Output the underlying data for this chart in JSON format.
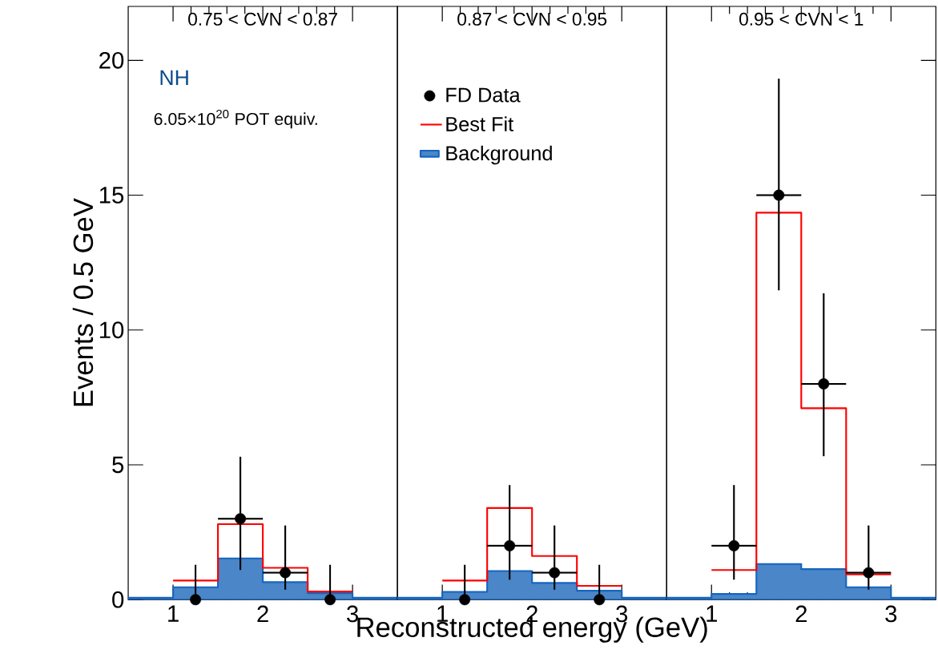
{
  "chart_data": [
    {
      "type": "histogram",
      "title": "0.75 < CVN < 0.87",
      "ylabel": "Events / 0.5 GeV",
      "annotations": [
        "NH",
        "6.05×10$^{20}$ POT equiv."
      ],
      "bins": [
        0.5,
        1,
        1.5,
        2,
        2.5,
        3,
        3.5
      ],
      "xlim": [
        0.5,
        3.5
      ],
      "xticks": [
        1,
        2,
        3
      ],
      "ylim": [
        0,
        22
      ],
      "yticks": [
        0,
        5,
        10,
        15,
        20
      ],
      "legend": false,
      "series": [
        {
          "type": "histogram",
          "color": "#4a86c8",
          "values": [
            0.07,
            0.46,
            1.53,
            0.65,
            0.24,
            0.07
          ]
        },
        {
          "type": "step",
          "color": "#ff0000",
          "x": [
            1,
            1.5,
            2,
            2.5,
            3
          ],
          "values": [
            0.71,
            2.8,
            1.18,
            0.3,
            0.3
          ]
        },
        {
          "type": "scatter",
          "color": "#000000",
          "x": [
            1.25,
            1.75,
            2.25,
            2.75
          ],
          "values": [
            0,
            3,
            1,
            0
          ],
          "errors": [
            [
              0,
              1.29
            ],
            [
              1.1,
              5.3
            ],
            [
              0.37,
              2.75
            ],
            [
              0,
              1.29
            ]
          ],
          "xerrors": [
            null,
            0.25,
            0.25,
            null
          ]
        }
      ]
    },
    {
      "type": "histogram",
      "title": "0.87 < CVN < 0.95",
      "xlabel": "Reconstructed energy (GeV)",
      "bins": [
        0.5,
        1,
        1.5,
        2,
        2.5,
        3,
        3.5
      ],
      "xlim": [
        0.5,
        3.5
      ],
      "xticks": [
        1,
        2,
        3
      ],
      "ylim": [
        0,
        22
      ],
      "yticks": [
        0,
        5,
        10,
        15,
        20
      ],
      "tick_labels": "x",
      "legend": "top left",
      "series": [
        {
          "type": "histogram",
          "name": "Background",
          "color": "#4a86c8",
          "values": [
            0.07,
            0.29,
            1.06,
            0.62,
            0.33,
            0.07
          ]
        },
        {
          "type": "step",
          "name": "Best Fit",
          "color": "#ff0000",
          "x": [
            1,
            1.5,
            2,
            2.5,
            3
          ],
          "values": [
            0.71,
            3.4,
            1.62,
            0.51,
            0.51
          ]
        },
        {
          "type": "scatter",
          "name": "FD Data",
          "color": "#000000",
          "x": [
            1.25,
            1.75,
            2.25,
            2.75
          ],
          "values": [
            0,
            2,
            1,
            0
          ],
          "errors": [
            [
              0,
              1.29
            ],
            [
              0.74,
              4.25
            ],
            [
              0.37,
              2.75
            ],
            [
              0,
              1.29
            ]
          ],
          "xerrors": [
            null,
            0.25,
            0.25,
            null
          ]
        }
      ]
    },
    {
      "type": "histogram",
      "title": "0.95 < CVN < 1",
      "bins": [
        0.5,
        1,
        1.5,
        2,
        2.5,
        3,
        3.5
      ],
      "xlim": [
        0.5,
        3.5
      ],
      "xticks": [
        1,
        2,
        3
      ],
      "ylim": [
        0,
        22
      ],
      "yticks": [
        0,
        5,
        10,
        15,
        20
      ],
      "tick_labels": "x",
      "legend": false,
      "series": [
        {
          "type": "histogram",
          "color": "#4a86c8",
          "values": [
            0.07,
            0.21,
            1.32,
            1.13,
            0.46,
            0.07
          ]
        },
        {
          "type": "step",
          "color": "#ff0000",
          "x": [
            1,
            1.5,
            2,
            2.5,
            3
          ],
          "values": [
            1.1,
            14.35,
            7.1,
            0.94,
            0.94
          ]
        },
        {
          "type": "scatter",
          "color": "#000000",
          "x": [
            1.25,
            1.75,
            2.25,
            2.75
          ],
          "values": [
            2,
            15,
            8,
            1
          ],
          "errors": [
            [
              0.74,
              4.25
            ],
            [
              11.47,
              19.32
            ],
            [
              5.32,
              11.36
            ],
            [
              0.37,
              2.75
            ]
          ],
          "xerrors": [
            0.25,
            0.25,
            0.25,
            0.25
          ]
        }
      ]
    }
  ]
}
